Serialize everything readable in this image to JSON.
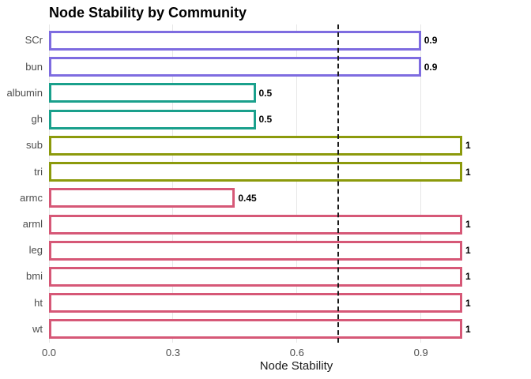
{
  "chart_data": {
    "type": "bar",
    "orientation": "horizontal",
    "title": "Node Stability by Community",
    "xlabel": "Node Stability",
    "ylabel": "",
    "xlim": [
      0,
      1.2
    ],
    "x_tick_values": [
      0,
      0.3,
      0.6,
      0.9
    ],
    "x_tick_labels": [
      "0.0",
      "0.3",
      "0.6",
      "0.9"
    ],
    "grid": "vertical-major-only",
    "legend": "none",
    "reference_line": {
      "value": 0.7,
      "style": "dashed",
      "color": "#1a1a1a"
    },
    "categories": [
      "SCr",
      "bun",
      "albumin",
      "gh",
      "sub",
      "tri",
      "armc",
      "arml",
      "leg",
      "bmi",
      "ht",
      "wt"
    ],
    "values": [
      0.9,
      0.9,
      0.5,
      0.5,
      1,
      1,
      0.45,
      1,
      1,
      1,
      1,
      1
    ],
    "value_labels": [
      "0.9",
      "0.9",
      "0.5",
      "0.5",
      "1",
      "1",
      "0.45",
      "1",
      "1",
      "1",
      "1",
      "1"
    ],
    "bar_colors": [
      "#7e6ce0",
      "#7e6ce0",
      "#1aa08c",
      "#1aa08c",
      "#8c9a0c",
      "#8c9a0c",
      "#d65877",
      "#d65877",
      "#d65877",
      "#d65877",
      "#d65877",
      "#d65877"
    ],
    "bar_fill": "#ffffff",
    "communities": [
      {
        "name": "community-1",
        "color": "#7e6ce0",
        "members": [
          "SCr",
          "bun"
        ]
      },
      {
        "name": "community-2",
        "color": "#1aa08c",
        "members": [
          "albumin",
          "gh"
        ]
      },
      {
        "name": "community-3",
        "color": "#8c9a0c",
        "members": [
          "sub",
          "tri"
        ]
      },
      {
        "name": "community-4",
        "color": "#d65877",
        "members": [
          "armc",
          "arml",
          "leg",
          "bmi",
          "ht",
          "wt"
        ]
      }
    ],
    "colors": {
      "grid": "#e6e6e6",
      "axis_text": "#4d4d4d",
      "title_text": "#000000",
      "value_label_text": "#000000"
    }
  }
}
